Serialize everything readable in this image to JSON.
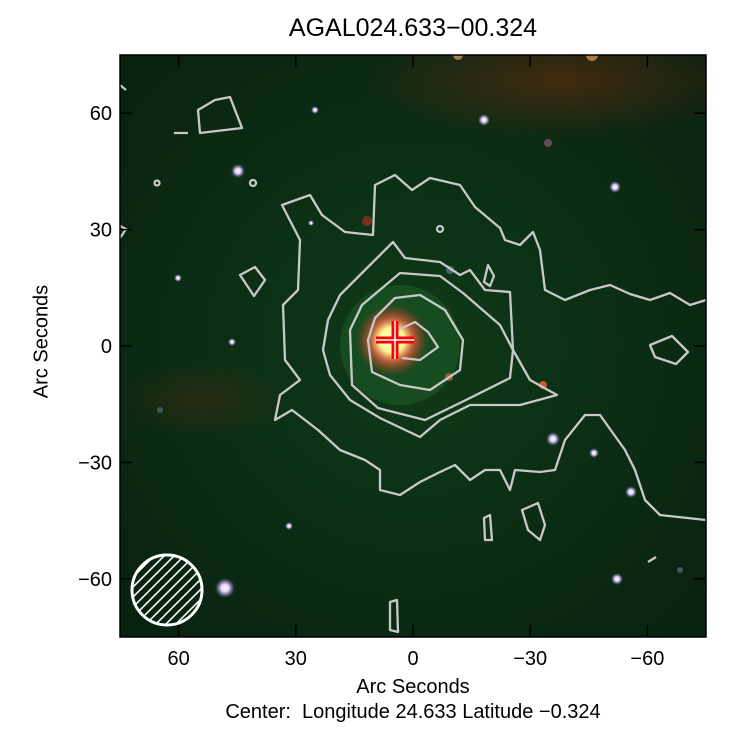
{
  "chart_data": {
    "type": "image-contour",
    "title": "AGAL024.633−00.324",
    "xlabel": "Arc Seconds",
    "ylabel": "Arc Seconds",
    "caption": "Center:  Longitude 24.633 Latitude −0.324",
    "xlim": [
      75,
      -75
    ],
    "ylim": [
      -75,
      75
    ],
    "xticks": [
      60,
      30,
      0,
      -30,
      -60
    ],
    "xtick_labels": [
      "60",
      "30",
      "0",
      "−30",
      "−60"
    ],
    "yticks": [
      60,
      30,
      0,
      -30,
      -60
    ],
    "ytick_labels": [
      "60",
      "30",
      "0",
      "−30",
      "−60"
    ],
    "image": "three-colour composite, green-dominated",
    "contour_color": "#c8c8c8",
    "contour_levels": 5,
    "marker": {
      "type": "cross",
      "color": "#ff0000",
      "x": 4,
      "y": 2
    },
    "beam": {
      "shape": "hatched-circle",
      "color": "#ffffff",
      "x": 62,
      "y": -62
    },
    "grid": false
  }
}
